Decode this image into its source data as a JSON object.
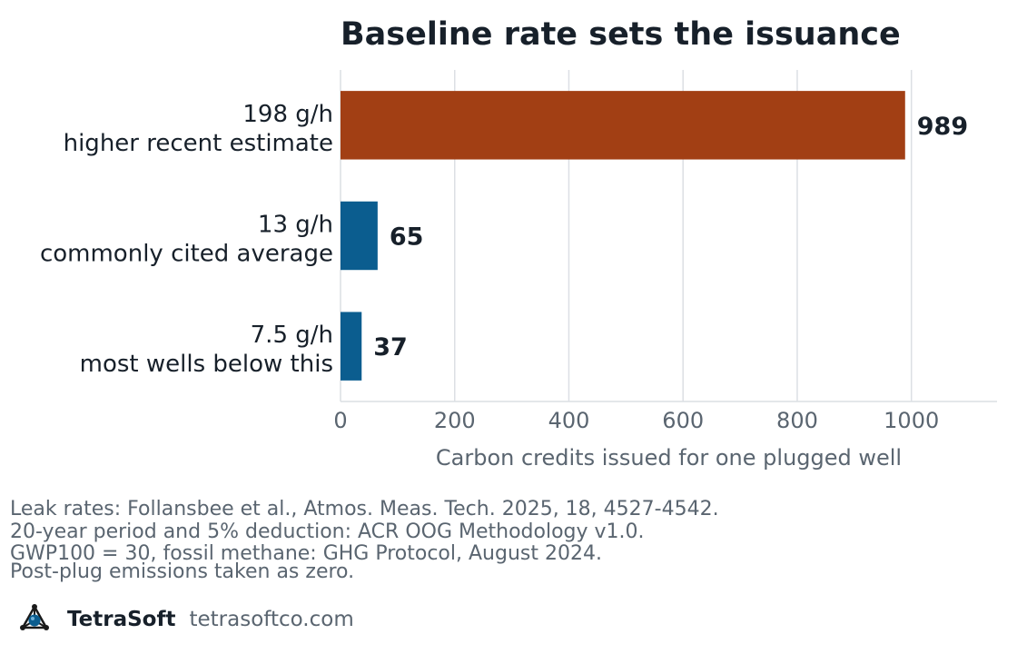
{
  "chart_data": {
    "type": "bar",
    "orientation": "horizontal",
    "title": "Baseline rate sets the issuance",
    "xlabel": "Carbon credits issued for one plugged well",
    "ylabel": "",
    "xlim": [
      0,
      1150
    ],
    "xticks": [
      "0",
      "200",
      "400",
      "600",
      "800",
      "1000"
    ],
    "grid": "vertical",
    "categories": [
      [
        "198 g/h",
        "higher recent estimate"
      ],
      [
        "13 g/h",
        "commonly cited average"
      ],
      [
        "7.5 g/h",
        "most wells below this"
      ]
    ],
    "values": [
      989,
      65,
      37
    ],
    "value_labels": [
      "989",
      "65",
      "37"
    ],
    "colors": [
      "#a23f14",
      "#0b5d8f",
      "#0b5d8f"
    ]
  },
  "footer": {
    "notes": [
      "Leak rates: Follansbee et al., Atmos. Meas. Tech. 2025, 18, 4527-4542.",
      "20-year period and 5% deduction: ACR OOG Methodology v1.0.",
      "GWP100 = 30, fossil methane: GHG Protocol, August 2024.",
      "Post-plug emissions taken as zero."
    ],
    "brand_name": "TetraSoft",
    "brand_url": "tetrasoftco.com",
    "brand_icon": "tetrahedron-logo-icon"
  }
}
